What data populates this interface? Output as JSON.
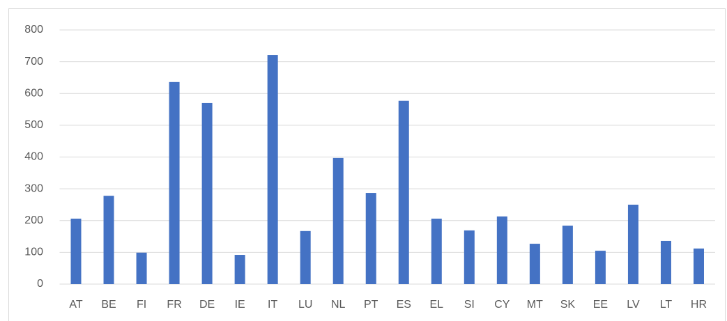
{
  "chart_data": {
    "type": "bar",
    "categories": [
      "AT",
      "BE",
      "FI",
      "FR",
      "DE",
      "IE",
      "IT",
      "LU",
      "NL",
      "PT",
      "ES",
      "EL",
      "SI",
      "CY",
      "MT",
      "SK",
      "EE",
      "LV",
      "LT",
      "HR"
    ],
    "values": [
      206,
      278,
      99,
      636,
      570,
      92,
      721,
      167,
      397,
      287,
      577,
      206,
      169,
      213,
      127,
      184,
      105,
      250,
      136,
      112
    ],
    "color": "#4472c4",
    "ylim": [
      0,
      800
    ],
    "yticks": [
      0,
      100,
      200,
      300,
      400,
      500,
      600,
      700,
      800
    ],
    "grid": true
  }
}
